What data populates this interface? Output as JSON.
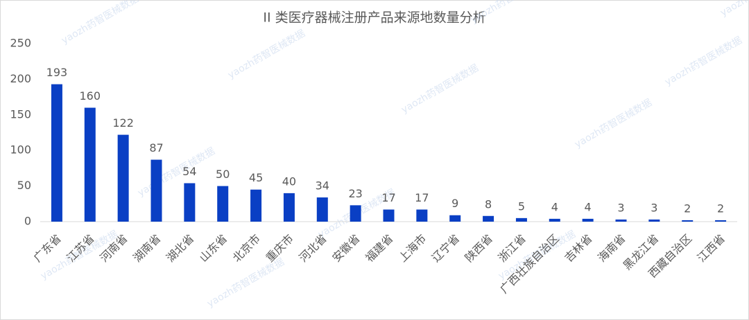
{
  "chart_data": {
    "type": "bar",
    "title": "II 类医疗器械注册产品来源地数量分析",
    "watermark": "yaozh药智医械数据",
    "categories": [
      "广东省",
      "江苏省",
      "河南省",
      "湖南省",
      "湖北省",
      "山东省",
      "北京市",
      "重庆市",
      "河北省",
      "安徽省",
      "福建省",
      "上海市",
      "辽宁省",
      "陕西省",
      "浙江省",
      "广西壮族自治区",
      "吉林省",
      "海南省",
      "黑龙江省",
      "西藏自治区",
      "江西省"
    ],
    "values": [
      193,
      160,
      122,
      87,
      54,
      50,
      45,
      40,
      34,
      23,
      17,
      17,
      9,
      8,
      5,
      4,
      4,
      3,
      3,
      2,
      2
    ],
    "color": "#0a3fc4",
    "ylim": [
      0,
      250
    ],
    "yticks": [
      0,
      50,
      100,
      150,
      200,
      250
    ],
    "grid": false
  }
}
